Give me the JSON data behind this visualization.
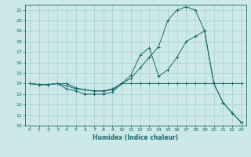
{
  "xlabel": "Humidex (Indice chaleur)",
  "xlim": [
    -0.5,
    23.5
  ],
  "ylim": [
    10,
    21.5
  ],
  "yticks": [
    10,
    11,
    12,
    13,
    14,
    15,
    16,
    17,
    18,
    19,
    20,
    21
  ],
  "xticks": [
    0,
    1,
    2,
    3,
    4,
    5,
    6,
    7,
    8,
    9,
    10,
    11,
    12,
    13,
    14,
    15,
    16,
    17,
    18,
    19,
    20,
    21,
    22,
    23
  ],
  "bg_color": "#cce8e8",
  "grid_color": "#aacfcf",
  "line_color": "#1a6b6b",
  "curves": [
    {
      "x": [
        0,
        1,
        2,
        3,
        4,
        5,
        6,
        7,
        8,
        9,
        10,
        11,
        12,
        13,
        14,
        15,
        16,
        17,
        18,
        19,
        20,
        21,
        22,
        23
      ],
      "y": [
        14,
        13.9,
        13.9,
        14.0,
        13.8,
        13.5,
        13.4,
        13.3,
        13.3,
        13.4,
        14.0,
        14.0,
        14.0,
        14.0,
        14.0,
        14.0,
        14.0,
        14.0,
        14.0,
        14.0,
        14.0,
        14.0,
        14.0,
        14.0
      ]
    },
    {
      "x": [
        0,
        1,
        2,
        3,
        4,
        5,
        6,
        7,
        8,
        9,
        10,
        11,
        12,
        13,
        14,
        15,
        16,
        17,
        18,
        19,
        20,
        21,
        22,
        23
      ],
      "y": [
        14,
        13.9,
        13.9,
        14.0,
        14.0,
        13.6,
        13.4,
        13.3,
        13.3,
        13.5,
        14.0,
        14.5,
        15.5,
        16.5,
        17.5,
        20.0,
        21.0,
        21.3,
        21.0,
        19.0,
        14.0,
        12.2,
        11.2,
        10.3
      ]
    },
    {
      "x": [
        0,
        1,
        2,
        3,
        4,
        5,
        6,
        7,
        8,
        9,
        10,
        11,
        12,
        13,
        14,
        15,
        16,
        17,
        18,
        19,
        20,
        21,
        22,
        23
      ],
      "y": [
        14,
        13.9,
        13.9,
        14.0,
        13.5,
        13.3,
        13.0,
        13.0,
        13.0,
        13.2,
        14.0,
        14.8,
        16.7,
        17.4,
        14.7,
        15.3,
        16.5,
        18.0,
        18.5,
        19.0,
        14.0,
        12.2,
        11.2,
        10.3
      ]
    }
  ]
}
